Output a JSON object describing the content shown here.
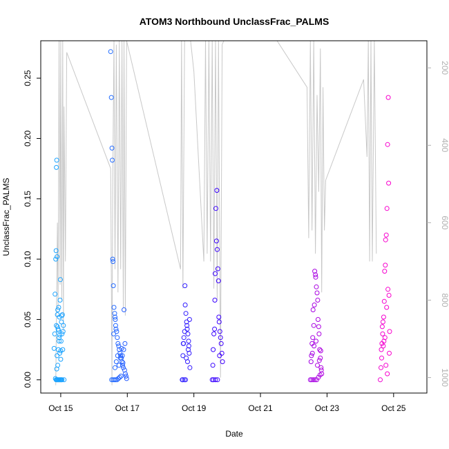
{
  "chart_data": {
    "type": "scatter",
    "title": "ATOM3 Northbound UnclassFrac_PALMS",
    "xlabel": "Date",
    "ylabel": "UnclassFrac_PALMS",
    "x_ticks": [
      "Oct 15",
      "Oct 17",
      "Oct 19",
      "Oct 21",
      "Oct 23",
      "Oct 25"
    ],
    "x_tick_values": [
      0,
      2,
      4,
      6,
      8,
      10
    ],
    "xlim": [
      -0.6,
      11.0
    ],
    "y_ticks": [
      "0.00",
      "0.05",
      "0.10",
      "0.15",
      "0.20",
      "0.25"
    ],
    "y_tick_values": [
      0,
      0.05,
      0.1,
      0.15,
      0.2,
      0.25
    ],
    "ylim": [
      -0.011,
      0.281
    ],
    "secondary_axis": {
      "ticks": [
        "200",
        "400",
        "600",
        "800",
        "1000"
      ],
      "tick_values": [
        200,
        400,
        600,
        800,
        1000
      ],
      "range_top": 130,
      "range_bottom": 1040,
      "color": "#b0b0b0"
    },
    "grid": false,
    "legend": "none",
    "point_color_start": "#1aa3ff",
    "point_color_mid": "#3300ff",
    "point_color_end": "#ff00cc",
    "line_color": "#c8c8c8",
    "pressure_line": [
      {
        "x": -0.15,
        "p": 1020
      },
      {
        "x": -0.1,
        "p": 600
      },
      {
        "x": -0.08,
        "p": 820
      },
      {
        "x": -0.05,
        "p": 130
      },
      {
        "x": -0.02,
        "p": 760
      },
      {
        "x": 0.0,
        "p": 130
      },
      {
        "x": 0.03,
        "p": 800
      },
      {
        "x": 0.06,
        "p": 130
      },
      {
        "x": 0.08,
        "p": 880
      },
      {
        "x": 0.1,
        "p": 300
      },
      {
        "x": 0.14,
        "p": 700
      },
      {
        "x": 0.18,
        "p": 160
      },
      {
        "x": 1.5,
        "p": 460
      },
      {
        "x": 1.54,
        "p": 1020
      },
      {
        "x": 1.56,
        "p": 520
      },
      {
        "x": 1.6,
        "p": 130
      },
      {
        "x": 1.63,
        "p": 720
      },
      {
        "x": 1.67,
        "p": 140
      },
      {
        "x": 1.72,
        "p": 780
      },
      {
        "x": 1.76,
        "p": 130
      },
      {
        "x": 1.8,
        "p": 720
      },
      {
        "x": 1.84,
        "p": 130
      },
      {
        "x": 1.88,
        "p": 820
      },
      {
        "x": 1.9,
        "p": 130
      },
      {
        "x": 1.94,
        "p": 840
      },
      {
        "x": 1.98,
        "p": 130
      },
      {
        "x": 3.6,
        "p": 720
      },
      {
        "x": 3.63,
        "p": 130
      },
      {
        "x": 3.67,
        "p": 770
      },
      {
        "x": 3.72,
        "p": 130
      },
      {
        "x": 3.76,
        "p": 130
      },
      {
        "x": 3.9,
        "p": 130
      },
      {
        "x": 4.0,
        "p": 210
      },
      {
        "x": 4.3,
        "p": 700
      },
      {
        "x": 4.35,
        "p": 130
      },
      {
        "x": 4.4,
        "p": 680
      },
      {
        "x": 4.45,
        "p": 130
      },
      {
        "x": 4.5,
        "p": 700
      },
      {
        "x": 4.55,
        "p": 130
      },
      {
        "x": 4.6,
        "p": 770
      },
      {
        "x": 4.65,
        "p": 130
      },
      {
        "x": 4.7,
        "p": 800
      },
      {
        "x": 4.74,
        "p": 130
      },
      {
        "x": 4.8,
        "p": 1000
      },
      {
        "x": 4.85,
        "p": 140
      },
      {
        "x": 4.9,
        "p": 130
      },
      {
        "x": 6.5,
        "p": 130
      },
      {
        "x": 7.4,
        "p": 250
      },
      {
        "x": 7.45,
        "p": 640
      },
      {
        "x": 7.5,
        "p": 130
      },
      {
        "x": 7.55,
        "p": 620
      },
      {
        "x": 7.6,
        "p": 130
      },
      {
        "x": 7.65,
        "p": 680
      },
      {
        "x": 7.7,
        "p": 270
      },
      {
        "x": 7.75,
        "p": 520
      },
      {
        "x": 7.8,
        "p": 150
      },
      {
        "x": 7.84,
        "p": 780
      },
      {
        "x": 7.88,
        "p": 250
      },
      {
        "x": 7.92,
        "p": 620
      },
      {
        "x": 7.96,
        "p": 490
      },
      {
        "x": 9.1,
        "p": 230
      },
      {
        "x": 9.2,
        "p": 430
      },
      {
        "x": 9.24,
        "p": 130
      },
      {
        "x": 9.28,
        "p": 700
      },
      {
        "x": 9.32,
        "p": 130
      },
      {
        "x": 9.36,
        "p": 700
      },
      {
        "x": 9.42,
        "p": 130
      },
      {
        "x": 9.48,
        "p": 680
      }
    ],
    "series": [
      {
        "x": [
          -0.2,
          -0.18,
          -0.17,
          -0.16,
          -0.15,
          -0.14,
          -0.13,
          -0.12,
          -0.12,
          -0.11,
          -0.1,
          -0.1,
          -0.09,
          -0.08,
          -0.07,
          -0.06,
          -0.05,
          -0.04,
          -0.03,
          -0.02,
          -0.01,
          0.0,
          0.0,
          0.01,
          0.02,
          0.03,
          0.04,
          0.05,
          0.06,
          0.07,
          0.08,
          0.1,
          -0.14,
          -0.12,
          -0.1,
          -0.08,
          -0.06,
          -0.04,
          -0.02,
          0.0,
          0.02,
          0.04,
          -0.13,
          -0.11,
          -0.09,
          -0.07,
          -0.05,
          -0.03
        ],
        "y": [
          0.026,
          0.038,
          0.071,
          0.001,
          0.1,
          0.107,
          0.176,
          0.182,
          0.009,
          0.102,
          0.054,
          0.044,
          0.058,
          0.042,
          0.041,
          0.06,
          0.035,
          0.052,
          0.037,
          0.066,
          0.083,
          0.017,
          0.024,
          0.032,
          0.048,
          0.053,
          0.038,
          0.054,
          0.025,
          0.04,
          0.045,
          0.0,
          0.0,
          0.0,
          0.0,
          0.0,
          0.0,
          0.0,
          0.0,
          0.0,
          0.0,
          0.0,
          0.045,
          0.02,
          0.012,
          0.025,
          0.032,
          0.022
        ]
      },
      {
        "x": [
          1.5,
          1.52,
          1.54,
          1.55,
          1.56,
          1.57,
          1.58,
          1.6,
          1.62,
          1.63,
          1.64,
          1.65,
          1.66,
          1.68,
          1.7,
          1.72,
          1.74,
          1.76,
          1.78,
          1.8,
          1.82,
          1.84,
          1.86,
          1.88,
          1.9,
          1.92,
          1.94,
          1.96,
          1.98,
          1.53,
          1.57,
          1.61,
          1.65,
          1.69,
          1.73,
          1.77,
          1.81,
          1.85,
          1.89,
          1.93,
          1.59,
          1.63,
          1.67,
          1.71,
          1.75,
          1.79,
          1.83,
          1.87
        ],
        "y": [
          0.272,
          0.234,
          0.192,
          0.182,
          0.1,
          0.098,
          0.078,
          0.06,
          0.055,
          0.052,
          0.05,
          0.045,
          0.042,
          0.04,
          0.035,
          0.03,
          0.028,
          0.025,
          0.022,
          0.02,
          0.018,
          0.015,
          0.012,
          0.01,
          0.058,
          0.008,
          0.005,
          0.003,
          0.001,
          0.0,
          0.0,
          0.0,
          0.0,
          0.0,
          0.001,
          0.002,
          0.003,
          0.02,
          0.025,
          0.03,
          0.038,
          0.01,
          0.015,
          0.02,
          0.012,
          0.018,
          0.026,
          0.014
        ]
      },
      {
        "x": [
          3.65,
          3.67,
          3.68,
          3.7,
          3.72,
          3.73,
          3.74,
          3.76,
          3.78,
          3.79,
          3.8,
          3.82,
          3.84,
          3.85,
          3.86,
          3.88,
          3.66,
          3.71,
          3.75,
          3.81,
          3.83,
          3.87,
          3.69,
          3.77,
          4.55,
          4.57,
          4.58,
          4.6,
          4.62,
          4.63,
          4.64,
          4.66,
          4.68,
          4.69,
          4.7,
          4.72,
          4.74,
          4.75,
          4.76,
          4.78,
          4.8,
          4.82,
          4.84,
          4.86,
          4.59,
          4.65,
          4.71,
          4.77
        ],
        "y": [
          0.0,
          0.02,
          0.03,
          0.035,
          0.04,
          0.078,
          0.062,
          0.055,
          0.048,
          0.045,
          0.042,
          0.038,
          0.032,
          0.028,
          0.022,
          0.01,
          0.0,
          0.0,
          0.0,
          0.015,
          0.025,
          0.05,
          0.03,
          0.018,
          0.0,
          0.012,
          0.025,
          0.038,
          0.042,
          0.066,
          0.088,
          0.142,
          0.115,
          0.157,
          0.108,
          0.092,
          0.082,
          0.052,
          0.048,
          0.04,
          0.035,
          0.03,
          0.022,
          0.015,
          0.0,
          0.0,
          0.0,
          0.02
        ]
      },
      {
        "x": [
          7.5,
          7.52,
          7.53,
          7.55,
          7.57,
          7.58,
          7.6,
          7.62,
          7.63,
          7.65,
          7.66,
          7.68,
          7.7,
          7.72,
          7.73,
          7.75,
          7.76,
          7.78,
          7.8,
          7.82,
          7.84,
          7.54,
          7.59,
          7.64,
          7.69,
          7.74,
          7.79,
          7.83,
          7.56,
          7.61,
          7.67,
          7.71,
          7.77,
          7.81
        ],
        "y": [
          0.0,
          0.015,
          0.02,
          0.03,
          0.035,
          0.058,
          0.045,
          0.062,
          0.09,
          0.087,
          0.085,
          0.077,
          0.072,
          0.066,
          0.05,
          0.044,
          0.038,
          0.025,
          0.018,
          0.01,
          0.005,
          0.0,
          0.0,
          0.0,
          0.0,
          0.002,
          0.004,
          0.008,
          0.022,
          0.028,
          0.032,
          0.012,
          0.016,
          0.024
        ]
      },
      {
        "x": [
          9.6,
          9.62,
          9.63,
          9.65,
          9.67,
          9.68,
          9.7,
          9.72,
          9.73,
          9.75,
          9.76,
          9.78,
          9.8,
          9.82,
          9.84,
          9.85,
          9.86,
          9.88,
          9.64,
          9.69,
          9.74,
          9.79,
          9.83,
          9.87,
          9.66,
          9.71,
          9.77,
          9.81
        ],
        "y": [
          0.0,
          0.01,
          0.025,
          0.03,
          0.038,
          0.048,
          0.052,
          0.065,
          0.09,
          0.095,
          0.116,
          0.12,
          0.142,
          0.195,
          0.234,
          0.163,
          0.07,
          0.04,
          0.018,
          0.028,
          0.035,
          0.06,
          0.075,
          0.022,
          0.044,
          0.032,
          0.012,
          0.005
        ]
      }
    ]
  }
}
